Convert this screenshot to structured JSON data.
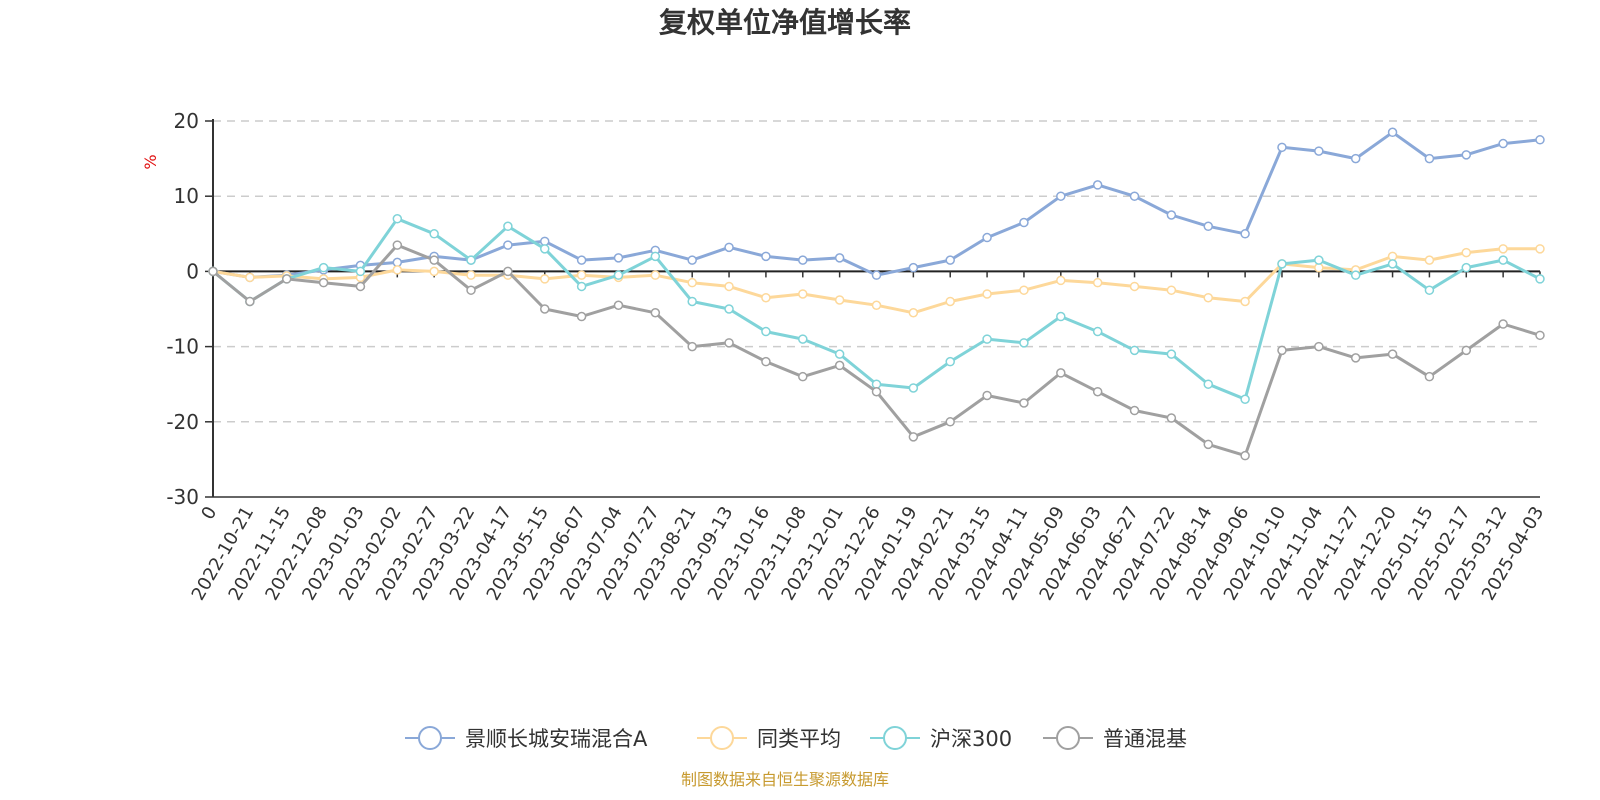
{
  "chart_data": {
    "type": "line",
    "title": "复权单位净值增长率",
    "ylabel": "%",
    "ylim": [
      -30,
      20
    ],
    "yticks": [
      20,
      10,
      0,
      -10,
      -20,
      -30
    ],
    "grid": "horizontal-dashed",
    "legend_position": "bottom",
    "xticks": [
      "0",
      "2022-10-21",
      "2022-11-15",
      "2022-12-08",
      "2023-01-03",
      "2023-02-02",
      "2023-02-27",
      "2023-03-22",
      "2023-04-17",
      "2023-05-15",
      "2023-06-07",
      "2023-07-04",
      "2023-07-27",
      "2023-08-21",
      "2023-09-13",
      "2023-10-16",
      "2023-11-08",
      "2023-12-01",
      "2023-12-26",
      "2024-01-19",
      "2024-02-21",
      "2024-03-15",
      "2024-04-11",
      "2024-05-09",
      "2024-06-03",
      "2024-06-27",
      "2024-07-22",
      "2024-08-14",
      "2024-09-06",
      "2024-10-10",
      "2024-11-04",
      "2024-11-27",
      "2024-12-20",
      "2025-01-15",
      "2025-02-17",
      "2025-03-12",
      "2025-04-03"
    ],
    "x": [
      0,
      1,
      2,
      3,
      4,
      5,
      6,
      7,
      8,
      9,
      10,
      11,
      12,
      13,
      14,
      15,
      16,
      17,
      18,
      19,
      20,
      21,
      22,
      23,
      24,
      25,
      26,
      27,
      28,
      29,
      30,
      31,
      32,
      33,
      34,
      35,
      36
    ],
    "series": [
      {
        "name": "景顺长城安瑞混合A",
        "color": "#8aa8d8",
        "values": [
          0,
          -0.8,
          -0.5,
          0.2,
          0.8,
          1.2,
          2.0,
          1.5,
          3.5,
          4.0,
          1.5,
          1.8,
          2.8,
          1.5,
          3.2,
          2.0,
          1.5,
          1.8,
          -0.5,
          0.5,
          1.5,
          4.5,
          6.5,
          10.0,
          11.5,
          10.0,
          7.5,
          6.0,
          5.0,
          16.5,
          16.0,
          15.0,
          18.5,
          15.0,
          15.5,
          17.0,
          17.5
        ]
      },
      {
        "name": "同类平均",
        "color": "#fdd89a",
        "values": [
          0,
          -0.8,
          -0.6,
          -1.0,
          -0.8,
          0.2,
          0.0,
          -0.5,
          -0.5,
          -1.0,
          -0.5,
          -0.8,
          -0.5,
          -1.5,
          -2.0,
          -3.5,
          -3.0,
          -3.8,
          -4.5,
          -5.5,
          -4.0,
          -3.0,
          -2.5,
          -1.2,
          -1.5,
          -2.0,
          -2.5,
          -3.5,
          -4.0,
          1.0,
          0.5,
          0.2,
          2.0,
          1.5,
          2.5,
          3.0,
          3.0
        ]
      },
      {
        "name": "沪深300",
        "color": "#7fd3d8",
        "values": [
          0,
          -4.0,
          -1.0,
          0.5,
          0.0,
          7.0,
          5.0,
          1.5,
          6.0,
          3.0,
          -2.0,
          -0.5,
          2.0,
          -4.0,
          -5.0,
          -8.0,
          -9.0,
          -11.0,
          -15.0,
          -15.5,
          -12.0,
          -9.0,
          -9.5,
          -6.0,
          -8.0,
          -10.5,
          -11.0,
          -15.0,
          -17.0,
          1.0,
          1.5,
          -0.5,
          1.0,
          -2.5,
          0.5,
          1.5,
          -1.0
        ]
      },
      {
        "name": "普通混基",
        "color": "#a0a0a0",
        "values": [
          0,
          -4.0,
          -1.0,
          -1.5,
          -2.0,
          3.5,
          1.5,
          -2.5,
          0.0,
          -5.0,
          -6.0,
          -4.5,
          -5.5,
          -10.0,
          -9.5,
          -12.0,
          -14.0,
          -12.5,
          -16.0,
          -22.0,
          -20.0,
          -16.5,
          -17.5,
          -13.5,
          -16.0,
          -18.5,
          -19.5,
          -23.0,
          -24.5,
          -10.5,
          -10.0,
          -11.5,
          -11.0,
          -14.0,
          -10.5,
          -7.0,
          -8.5
        ]
      }
    ]
  },
  "source_text": "制图数据来自恒生聚源数据库"
}
